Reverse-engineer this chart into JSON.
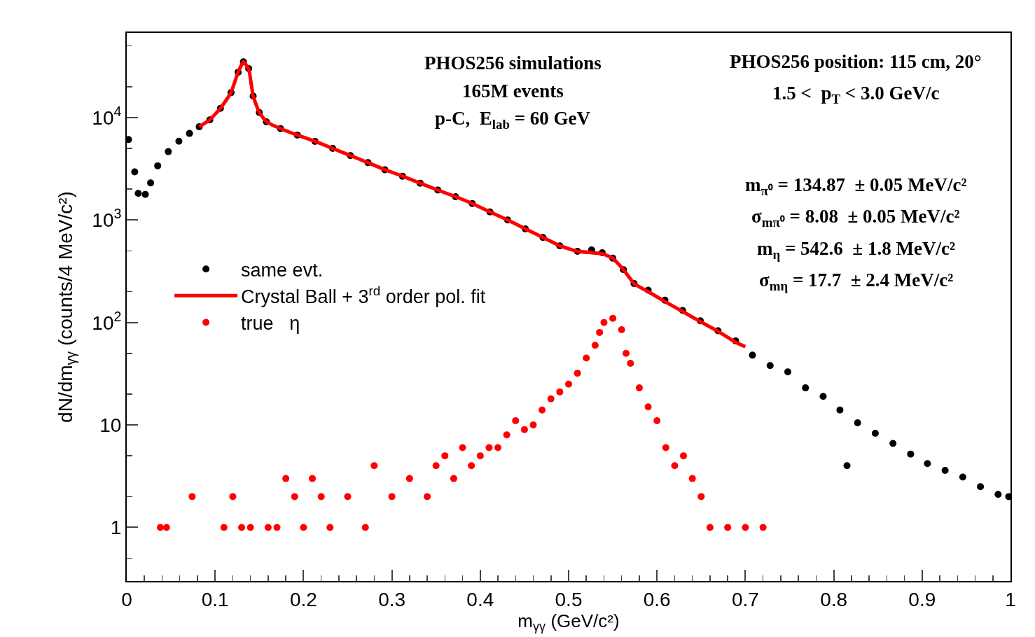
{
  "chart_data": {
    "type": "scatter",
    "xlabel": "m$_{γγ}$ (GeV/c²)",
    "ylabel": "dN/dm$_{γγ}$ (counts/4 MeV/c²)",
    "annotations": [
      "PHOS256 simulations",
      "165M events",
      "p-C,  E$_{lab}$ = 60 GeV",
      "PHOS256 position: 115 cm, 20°",
      "1.5 <  p$_{T}$ < 3.0 GeV/c",
      "m$_{π⁰}$ = 134.87  ± 0.05 MeV/c²",
      "σ$_{mπ⁰}$ = 8.08  ± 0.05 MeV/c²",
      "m$_{η}$ = 542.6  ± 1.8 MeV/c²",
      "σ$_{mη}$ = 17.7  ± 2.4 MeV/c²"
    ],
    "log": "y",
    "grid": false,
    "legend": "left",
    "marker": "circle",
    "xlim": [
      0,
      1
    ],
    "xticks": [
      0,
      0.1,
      0.2,
      0.3,
      0.4,
      0.5,
      0.6,
      0.7,
      0.8,
      0.9,
      1
    ],
    "ylim": [
      0.3,
      67000
    ],
    "yticks": [
      1,
      10,
      {
        "value": 100,
        "label": "10$^{2}$"
      },
      {
        "value": 1000,
        "label": "10$^{3}$"
      },
      {
        "value": 10000,
        "label": "10$^{4}$"
      }
    ],
    "series": [
      {
        "name": "same evt.",
        "color": "#000000",
        "x": [
          0.002,
          0.009,
          0.013,
          0.021,
          0.027,
          0.035,
          0.047,
          0.059,
          0.071,
          0.082,
          0.094,
          0.106,
          0.118,
          0.126,
          0.132,
          0.138,
          0.143,
          0.15,
          0.158,
          0.174,
          0.193,
          0.213,
          0.233,
          0.253,
          0.273,
          0.292,
          0.312,
          0.332,
          0.352,
          0.372,
          0.391,
          0.411,
          0.431,
          0.451,
          0.471,
          0.49,
          0.51,
          0.526,
          0.538,
          0.55,
          0.562,
          0.574,
          0.59,
          0.609,
          0.629,
          0.649,
          0.669,
          0.689,
          0.708,
          0.728,
          0.748,
          0.768,
          0.788,
          0.807,
          0.815,
          0.827,
          0.847,
          0.867,
          0.887,
          0.906,
          0.926,
          0.946,
          0.966,
          0.986,
          0.998
        ],
        "values": [
          6100,
          2950,
          1820,
          1780,
          2300,
          3380,
          4650,
          5870,
          7000,
          8130,
          9500,
          12300,
          17500,
          27700,
          35000,
          30000,
          16200,
          11200,
          9100,
          7800,
          6750,
          5860,
          5000,
          4260,
          3630,
          3100,
          2680,
          2290,
          1960,
          1690,
          1450,
          1200,
          1000,
          820,
          675,
          560,
          495,
          510,
          480,
          424,
          328,
          240,
          207,
          165,
          131,
          104,
          83,
          66,
          48,
          38,
          33,
          23,
          19,
          14,
          4,
          10.5,
          8.3,
          6.6,
          5.2,
          4.2,
          3.6,
          3.1,
          2.5,
          2.1,
          2
        ]
      },
      {
        "name": "Crystal Ball + 3$^{rd}$ order pol. fit",
        "type": "line",
        "color": "#ff0000",
        "line_style": "solid",
        "marker": "none",
        "x": [
          0.082,
          0.094,
          0.106,
          0.118,
          0.126,
          0.132,
          0.138,
          0.143,
          0.15,
          0.158,
          0.174,
          0.193,
          0.213,
          0.233,
          0.253,
          0.273,
          0.292,
          0.312,
          0.332,
          0.352,
          0.372,
          0.391,
          0.411,
          0.431,
          0.451,
          0.471,
          0.49,
          0.51,
          0.526,
          0.538,
          0.55,
          0.562,
          0.574,
          0.59,
          0.609,
          0.629,
          0.649,
          0.669,
          0.689,
          0.7
        ],
        "values": [
          8130,
          9500,
          12300,
          17500,
          27700,
          35000,
          30000,
          16200,
          11200,
          9100,
          7800,
          6750,
          5860,
          5000,
          4260,
          3630,
          3100,
          2680,
          2290,
          1960,
          1690,
          1450,
          1200,
          1000,
          820,
          675,
          560,
          495,
          480,
          470,
          424,
          328,
          240,
          200,
          160,
          128,
          102,
          82,
          64,
          58
        ]
      },
      {
        "name": "true   η",
        "color": "#ff0000",
        "x": [
          0.038,
          0.045,
          0.074,
          0.11,
          0.12,
          0.13,
          0.14,
          0.16,
          0.17,
          0.18,
          0.19,
          0.2,
          0.21,
          0.22,
          0.23,
          0.25,
          0.27,
          0.28,
          0.3,
          0.32,
          0.34,
          0.35,
          0.36,
          0.37,
          0.38,
          0.39,
          0.4,
          0.41,
          0.42,
          0.43,
          0.44,
          0.45,
          0.46,
          0.47,
          0.48,
          0.49,
          0.5,
          0.51,
          0.52,
          0.53,
          0.535,
          0.54,
          0.55,
          0.56,
          0.565,
          0.57,
          0.58,
          0.59,
          0.6,
          0.61,
          0.62,
          0.63,
          0.64,
          0.65,
          0.66,
          0.68,
          0.7,
          0.72
        ],
        "values": [
          1,
          1,
          2,
          1,
          2,
          1,
          1,
          1,
          1,
          3,
          2,
          1,
          3,
          2,
          1,
          2,
          1,
          4,
          2,
          3,
          2,
          4,
          5,
          3,
          6,
          4,
          5,
          6,
          6,
          8,
          11,
          9,
          10,
          14,
          18,
          21,
          25,
          32,
          45,
          60,
          80,
          100,
          110,
          85,
          50,
          40,
          23,
          15,
          11,
          6,
          4,
          5,
          3,
          2,
          1,
          1,
          1,
          1
        ]
      }
    ]
  }
}
